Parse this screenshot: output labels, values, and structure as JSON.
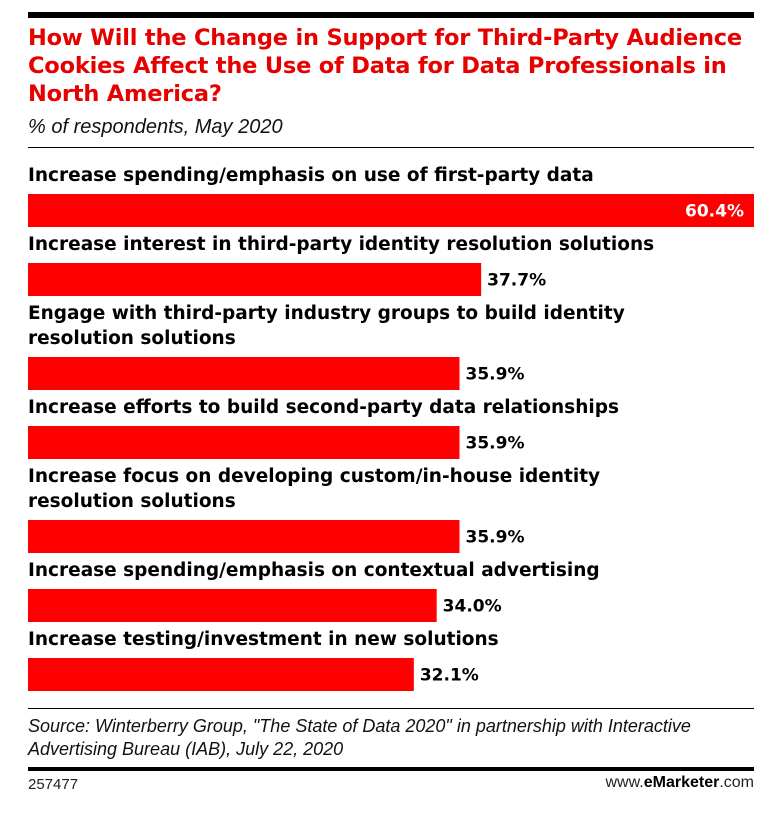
{
  "header": {
    "title": "How Will the Change in Support for Third-Party Audience Cookies Affect the Use of Data for Data Professionals in North America?",
    "subtitle": "% of respondents, May 2020"
  },
  "colors": {
    "bar": "#ff0000",
    "title": "#e60000"
  },
  "chart_data": {
    "type": "bar",
    "orientation": "horizontal",
    "title": "How Will the Change in Support for Third-Party Audience Cookies Affect the Use of Data for Data Professionals in North America?",
    "subtitle": "% of respondents, May 2020",
    "categories": [
      [
        "Increase spending/emphasis on use of first-party data"
      ],
      [
        "Increase interest in third-party identity resolution solutions"
      ],
      [
        "Engage with third-party industry groups to build identity",
        "resolution solutions"
      ],
      [
        "Increase efforts to build second-party data relationships"
      ],
      [
        "Increase focus on developing custom/in-house identity",
        "resolution solutions"
      ],
      [
        "Increase spending/emphasis on contextual advertising"
      ],
      [
        "Increase testing/investment in new solutions"
      ]
    ],
    "values": [
      60.4,
      37.7,
      35.9,
      35.9,
      35.9,
      34.0,
      32.1
    ],
    "value_labels": [
      "60.4%",
      "37.7%",
      "35.9%",
      "35.9%",
      "35.9%",
      "34.0%",
      "32.1%"
    ],
    "xlim": [
      0,
      60.4
    ],
    "grid": false,
    "legend": "none"
  },
  "footer": {
    "source": "Source: Winterberry Group, \"The State of Data 2020\" in partnership with Interactive Advertising Bureau (IAB), July 22, 2020",
    "chart_id": "257477",
    "brand_prefix": "www.",
    "brand_name": "eMarketer",
    "brand_suffix": ".com"
  }
}
